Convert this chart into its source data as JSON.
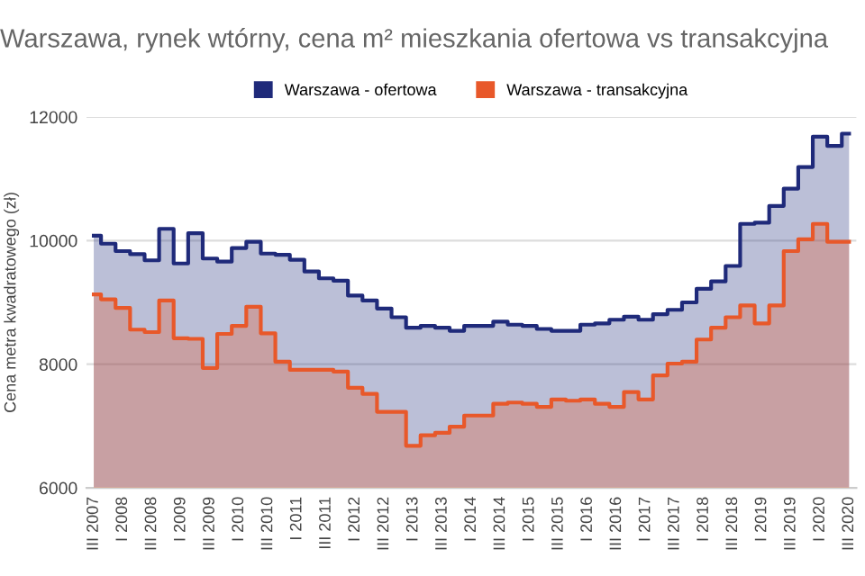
{
  "chart_data": {
    "type": "area",
    "title": "Warszawa, rynek wtórny, cena m² mieszkania ofertowa vs transakcyjna",
    "ylabel": "Cena metra kwadratowego (zł)",
    "categories": [
      "III 2007",
      null,
      "I 2008",
      null,
      "III 2008",
      null,
      "I 2009",
      null,
      "III 2009",
      null,
      "I 2010",
      null,
      "III 2010",
      null,
      "I 2011",
      null,
      "III 2011",
      null,
      "I 2012",
      null,
      "III 2012",
      null,
      "I 2013",
      null,
      "III 2013",
      null,
      "I 2014",
      null,
      "III 2014",
      null,
      "I 2015",
      null,
      "III 2015",
      null,
      "I 2016",
      null,
      "III 2016",
      null,
      "I 2017",
      null,
      "III 2017",
      null,
      "I 2018",
      null,
      "III 2018",
      null,
      "I 2019",
      null,
      "III 2019",
      null,
      "I 2020",
      null,
      "III 2020"
    ],
    "series": [
      {
        "name": "Warszawa - ofertowa",
        "color": "#1f2a7a",
        "values": [
          10080,
          9950,
          9830,
          9780,
          9680,
          10190,
          9630,
          10120,
          9710,
          9660,
          9880,
          9980,
          9790,
          9770,
          9690,
          9500,
          9390,
          9350,
          9110,
          9030,
          8900,
          8760,
          8590,
          8620,
          8590,
          8540,
          8620,
          8620,
          8690,
          8640,
          8620,
          8570,
          8540,
          8540,
          8640,
          8660,
          8720,
          8770,
          8720,
          8810,
          8880,
          9000,
          9220,
          9340,
          9590,
          10270,
          10290,
          10560,
          10840,
          11190,
          11680,
          11530,
          11730
        ]
      },
      {
        "name": "Warszawa - transakcyjna",
        "color": "#e8582a",
        "values": [
          9130,
          9050,
          8910,
          8560,
          8520,
          9030,
          8420,
          8410,
          7940,
          8490,
          8620,
          8930,
          8500,
          8040,
          7910,
          7910,
          7910,
          7880,
          7620,
          7520,
          7230,
          7230,
          6680,
          6850,
          6890,
          6990,
          7170,
          7170,
          7360,
          7380,
          7360,
          7310,
          7430,
          7410,
          7430,
          7360,
          7310,
          7550,
          7430,
          7820,
          8010,
          8040,
          8400,
          8590,
          8760,
          8950,
          8660,
          8950,
          9830,
          10020,
          10270,
          9980,
          9980
        ]
      }
    ],
    "ylim": [
      6000,
      12000
    ],
    "yticks": [
      6000,
      8000,
      10000,
      12000
    ],
    "grid": "y",
    "legend": "top"
  }
}
